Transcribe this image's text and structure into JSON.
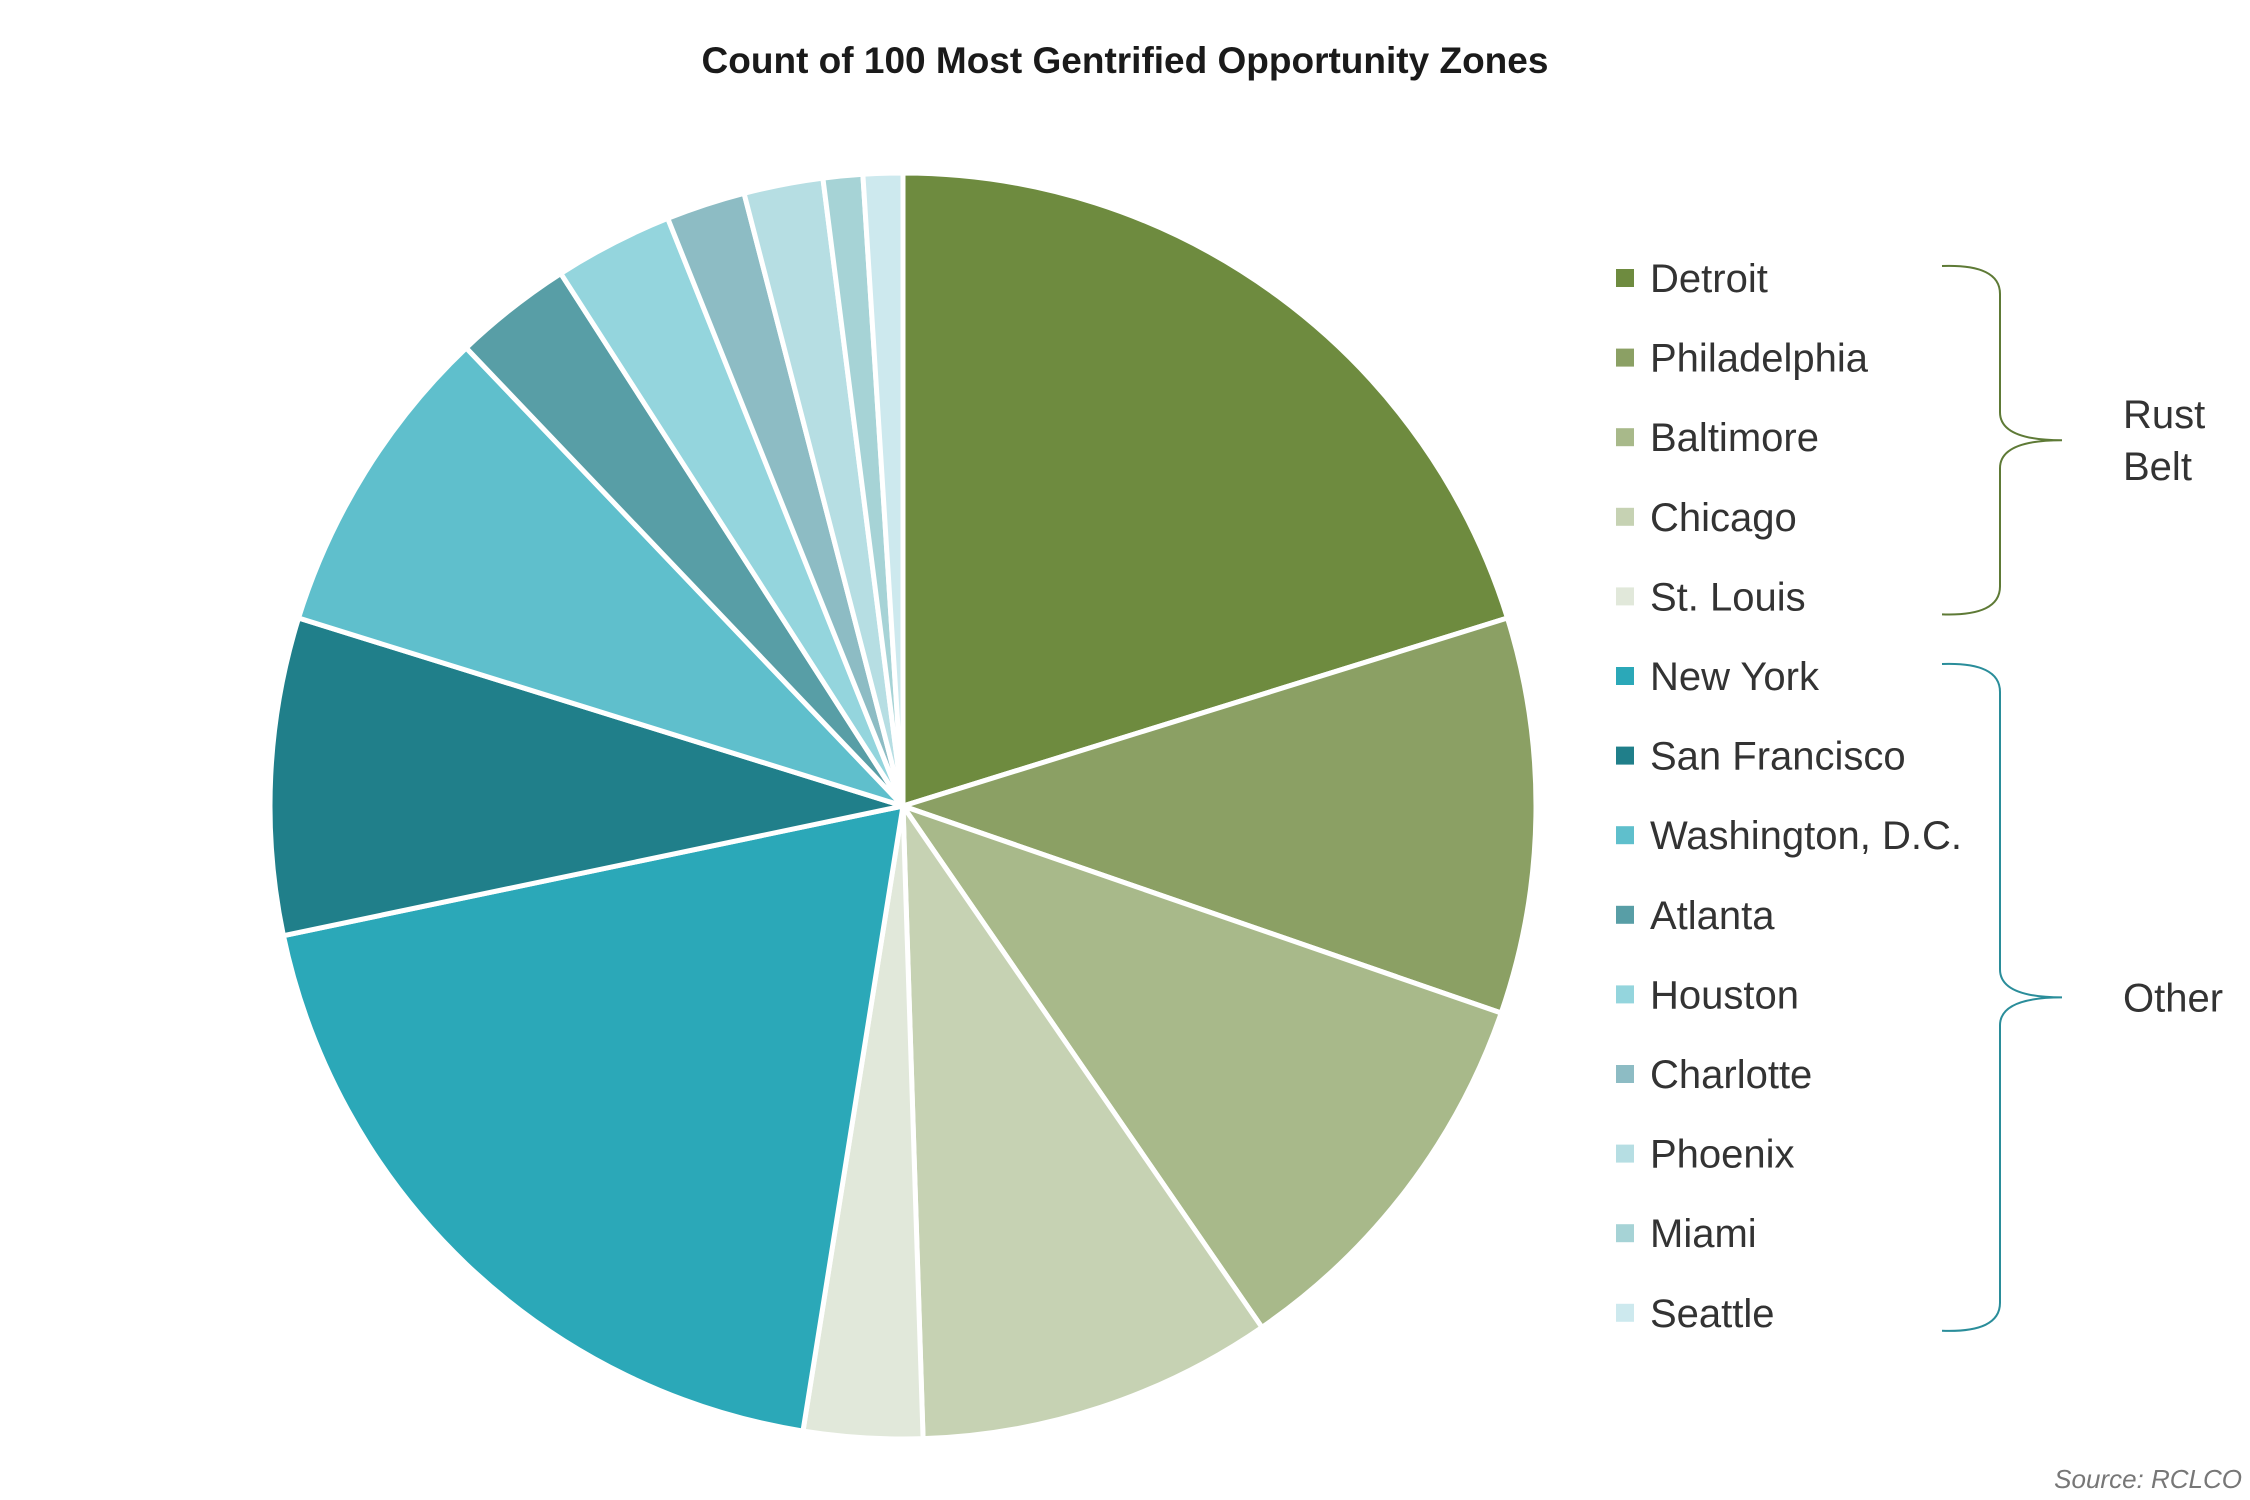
{
  "chart_data": {
    "type": "pie",
    "title": "Count of 100 Most Gentrified Opportunity Zones",
    "source": "Source: RCLCO",
    "start_angle_deg": 0,
    "direction": "clockwise",
    "slices": [
      {
        "label": "Detroit",
        "value": 20,
        "color": "#6E8B3F"
      },
      {
        "label": "Philadelphia",
        "value": 10,
        "color": "#8BA064"
      },
      {
        "label": "Baltimore",
        "value": 10,
        "color": "#A8B98A"
      },
      {
        "label": "Chicago",
        "value": 9,
        "color": "#C6D2B3"
      },
      {
        "label": "St. Louis",
        "value": 3,
        "color": "#E1E8DA"
      },
      {
        "label": "New York",
        "value": 19,
        "color": "#2BA8B8"
      },
      {
        "label": "San Francisco",
        "value": 8,
        "color": "#207F8A"
      },
      {
        "label": "Washington, D.C.",
        "value": 8,
        "color": "#5FBFCC"
      },
      {
        "label": "Atlanta",
        "value": 3,
        "color": "#589EA6"
      },
      {
        "label": "Houston",
        "value": 3,
        "color": "#94D5DD"
      },
      {
        "label": "Charlotte",
        "value": 2,
        "color": "#8DBCC4"
      },
      {
        "label": "Phoenix",
        "value": 2,
        "color": "#B6DEE3"
      },
      {
        "label": "Miami",
        "value": 1,
        "color": "#A6D3D6"
      },
      {
        "label": "Seattle",
        "value": 1,
        "color": "#CDE9EE"
      }
    ],
    "groups": [
      {
        "label_lines": [
          "Rust",
          "Belt"
        ],
        "members": [
          "Detroit",
          "Philadelphia",
          "Baltimore",
          "Chicago",
          "St. Louis"
        ],
        "bracket_color": "#5E7A36"
      },
      {
        "label_lines": [
          "Other"
        ],
        "members": [
          "New York",
          "San Francisco",
          "Washington, D.C.",
          "Atlanta",
          "Houston",
          "Charlotte",
          "Phoenix",
          "Miami",
          "Seattle"
        ],
        "bracket_color": "#2A8D9A"
      }
    ],
    "legend_position": "right"
  }
}
